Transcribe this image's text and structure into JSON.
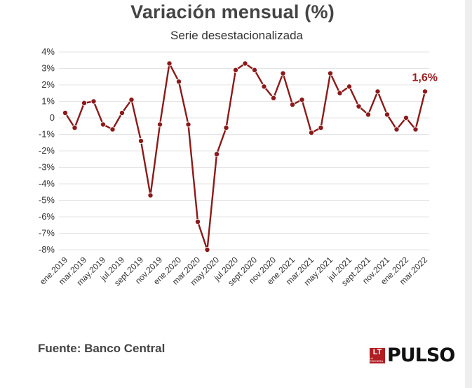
{
  "header": {
    "title": "Variación mensual (%)",
    "subtitle": "Serie desestacionalizada"
  },
  "footer": {
    "source": "Fuente: Banco Central",
    "logo_badge": "LT",
    "logo_badge_small": "LA TERCERA",
    "logo_word": "PULSO"
  },
  "colors": {
    "line": "#8b1a1a",
    "grid": "#e3e3e3",
    "annotation": "#9b1c1c",
    "logo_badge": "#b01e23"
  },
  "chart_data": {
    "type": "line",
    "title": "Variación mensual (%)",
    "subtitle": "Serie desestacionalizada",
    "y_ticks": [
      "4%",
      "3%",
      "2%",
      "1%",
      "0",
      "-1%",
      "-2%",
      "-3%",
      "-4%",
      "-5%",
      "-6%",
      "-7%",
      "-8%"
    ],
    "y_tick_values": [
      4,
      3,
      2,
      1,
      0,
      -1,
      -2,
      -3,
      -4,
      -5,
      -6,
      -7,
      -8
    ],
    "ylim": [
      -8,
      4
    ],
    "grid": true,
    "x_tick_labels": [
      "ene.2019",
      "mar.2019",
      "may.2019",
      "jul.2019",
      "sept.2019",
      "nov.2019",
      "ene.2020",
      "mar.2020",
      "may.2020",
      "jul.2020",
      "sept.2020",
      "nov.2020",
      "ene.2021",
      "mar.2021",
      "may.2021",
      "jul.2021",
      "sept.2021",
      "nov.2021",
      "ene.2022",
      "mar.2022"
    ],
    "series": [
      {
        "values": [
          0.3,
          -0.6,
          0.9,
          1.0,
          -0.4,
          -0.7,
          0.3,
          1.1,
          -1.4,
          -4.7,
          -0.4,
          3.3,
          2.2,
          -0.4,
          -6.3,
          -8.0,
          -2.2,
          -0.6,
          2.9,
          3.3,
          2.9,
          1.9,
          1.2,
          2.7,
          0.8,
          1.1,
          -0.9,
          -0.6,
          2.7,
          1.5,
          1.9,
          0.7,
          0.2,
          1.6,
          0.2,
          -0.7,
          0.0,
          -0.7,
          1.6
        ]
      }
    ],
    "annotation": {
      "label": "1,6%",
      "index": 38
    }
  }
}
